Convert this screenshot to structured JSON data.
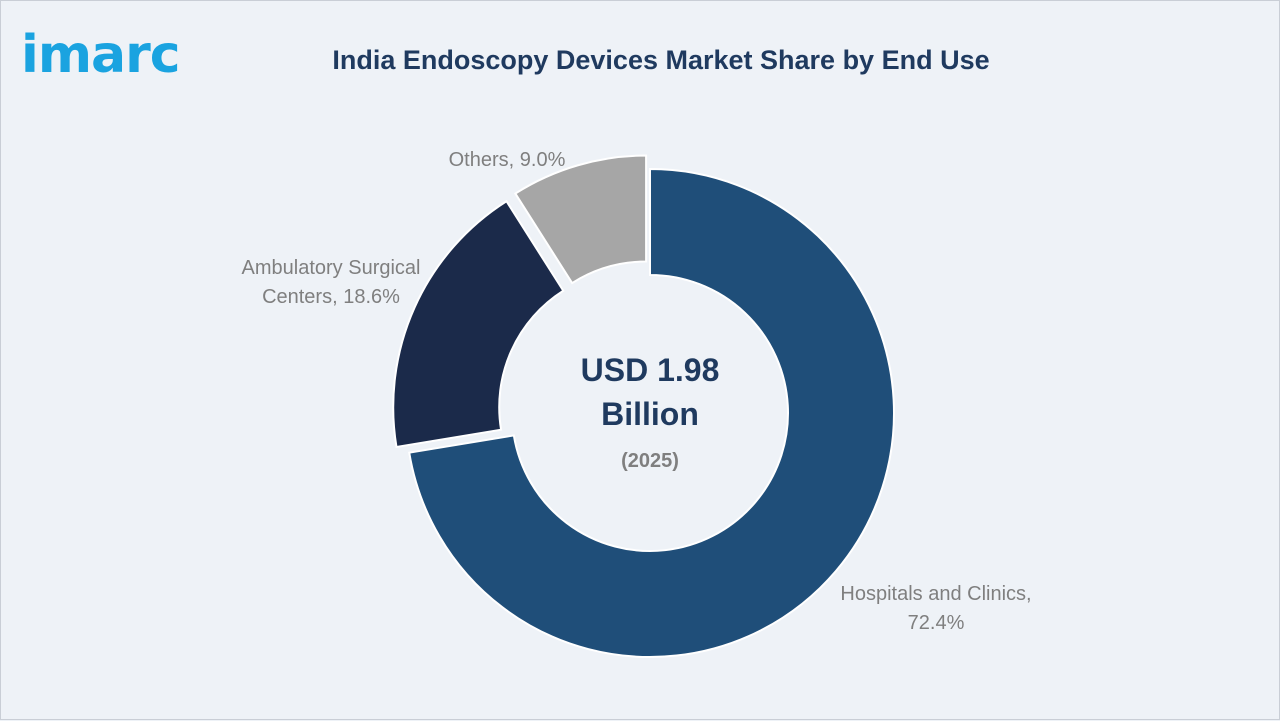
{
  "header": {
    "logo_text": "imarc",
    "title": "India Endoscopy Devices Market Share by End Use"
  },
  "chart_data": {
    "type": "pie",
    "title": "India Endoscopy Devices Market Share by End Use",
    "center_text": {
      "line1": "USD 1.98",
      "line2": "Billion",
      "year": "(2025)"
    },
    "slices": [
      {
        "label": "Hospitals and Clinics",
        "value": 72.4,
        "display": "72.4%",
        "color": "#1f4e79"
      },
      {
        "label": "Ambulatory Surgical Centers",
        "value": 18.6,
        "display": "18.6%",
        "color": "#1b2a4a"
      },
      {
        "label": "Others",
        "value": 9.0,
        "display": "9.0%",
        "color": "#a6a6a6"
      }
    ]
  }
}
